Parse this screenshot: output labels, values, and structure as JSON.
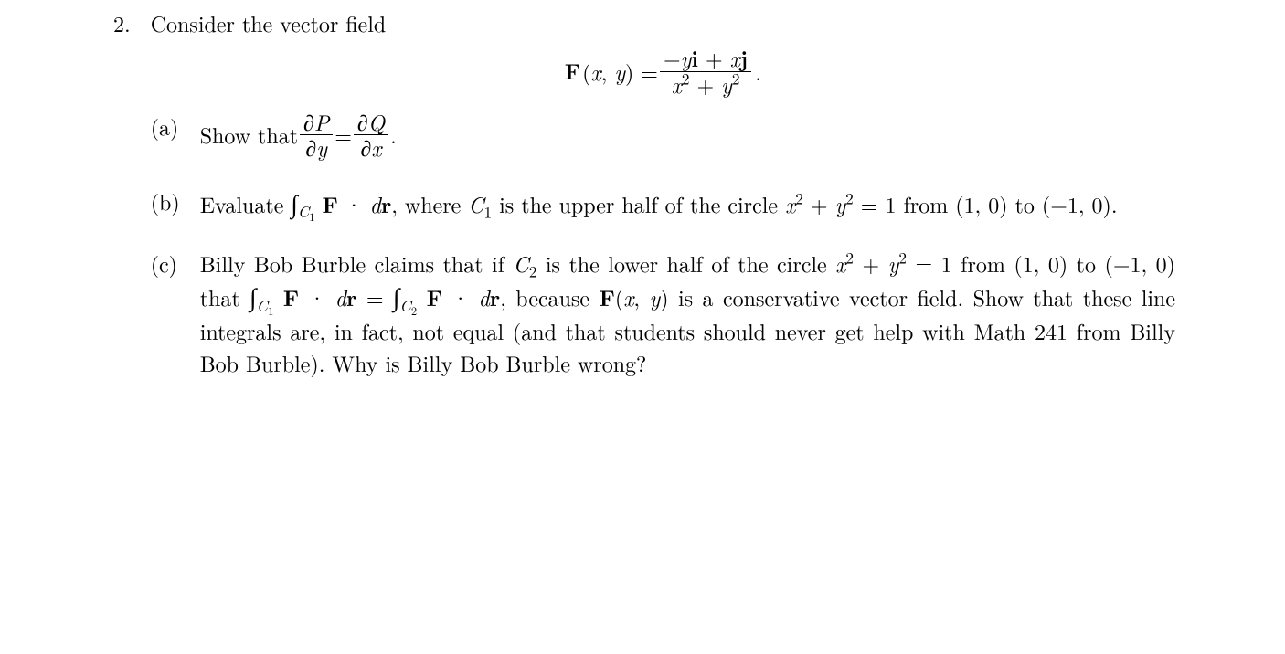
{
  "typography": {
    "font_family": "Latin Modern Roman, Computer Modern, Georgia, Times New Roman, serif",
    "font_size_pt": 18,
    "color": "#000000",
    "background": "#ffffff"
  },
  "problem": {
    "number": "2.",
    "intro": "Consider the vector field",
    "display_equation": {
      "lhs": "F(x, y) =",
      "numerator": "−yi + xj",
      "denominator": "x² + y²",
      "trailing": "."
    },
    "parts": [
      {
        "label": "(a)",
        "lead": "Show that ",
        "frac1_num": "∂P",
        "frac1_den": "∂y",
        "eq": " = ",
        "frac2_num": "∂Q",
        "frac2_den": "∂x",
        "trail": "."
      },
      {
        "label": "(b)",
        "lead": "Evaluate ",
        "int_sub": "C₁",
        "integrand": " F · dr",
        "mid": ", where ",
        "c1": "C₁",
        "mid2": " is the upper half of the circle ",
        "circle": "x² + y² = 1",
        "from": " from ",
        "p1": "(1, 0)",
        "to": " to ",
        "p2": "(−1, 0)",
        "trail": "."
      },
      {
        "label": "(c)",
        "s1": "Billy Bob Burble claims that if ",
        "c2": "C₂",
        "s2": " is the lower half of the circle ",
        "circle": "x² + y² = 1",
        "s3": " from ",
        "p1": "(1, 0)",
        "s4": " to ",
        "p2": "(−1, 0)",
        "s5": " that ",
        "int1_sub": "C₁",
        "integrand1": " F · dr",
        "eq": " = ",
        "int2_sub": "C₂",
        "integrand2": " F · dr",
        "s6": ", because ",
        "fxy": "F(x, y)",
        "s7": " is a conservative vector field.  Show that these line integrals are, in fact, not equal (and that students should never get help with Math 241 from Billy Bob Burble).  Why is Billy Bob Burble wrong?"
      }
    ]
  }
}
